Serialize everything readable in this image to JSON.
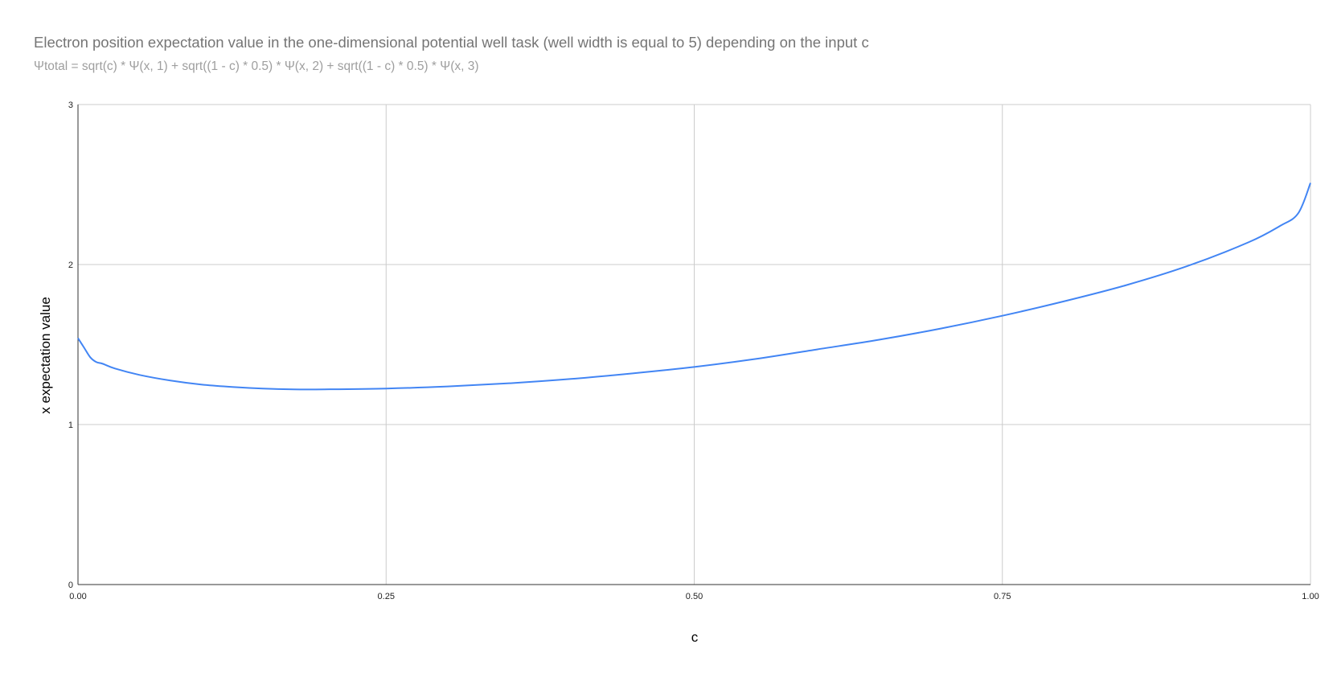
{
  "chart_data": {
    "type": "line",
    "title": "Electron position expectation value in the one-dimensional potential well task (well width is equal to 5) depending on the input c",
    "subtitle": "Ψtotal = sqrt(c) * Ψ(x, 1) + sqrt((1 - c) * 0.5) * Ψ(x, 2) + sqrt((1 - c) * 0.5) * Ψ(x, 3)",
    "xlabel": "c",
    "ylabel": "x expectation value",
    "xlim": [
      0,
      1
    ],
    "ylim": [
      0,
      3
    ],
    "x_ticks": [
      "0.00",
      "0.25",
      "0.50",
      "0.75",
      "1.00"
    ],
    "y_ticks": [
      "0",
      "1",
      "2",
      "3"
    ],
    "grid": true,
    "legend": "none",
    "line_color": "#4285f4",
    "series": [
      {
        "x": [
          0,
          0.005,
          0.01,
          0.015,
          0.02,
          0.03,
          0.05,
          0.075,
          0.1,
          0.125,
          0.15,
          0.175,
          0.2,
          0.25,
          0.3,
          0.35,
          0.4,
          0.45,
          0.5,
          0.55,
          0.6,
          0.65,
          0.7,
          0.75,
          0.8,
          0.85,
          0.9,
          0.95,
          0.975,
          0.99,
          1.0
        ],
        "y": [
          1.54,
          1.48,
          1.42,
          1.39,
          1.38,
          1.35,
          1.31,
          1.275,
          1.25,
          1.235,
          1.225,
          1.22,
          1.22,
          1.225,
          1.238,
          1.258,
          1.285,
          1.32,
          1.36,
          1.41,
          1.47,
          1.53,
          1.6,
          1.68,
          1.77,
          1.87,
          1.99,
          2.14,
          2.24,
          2.32,
          2.51
        ]
      }
    ]
  }
}
